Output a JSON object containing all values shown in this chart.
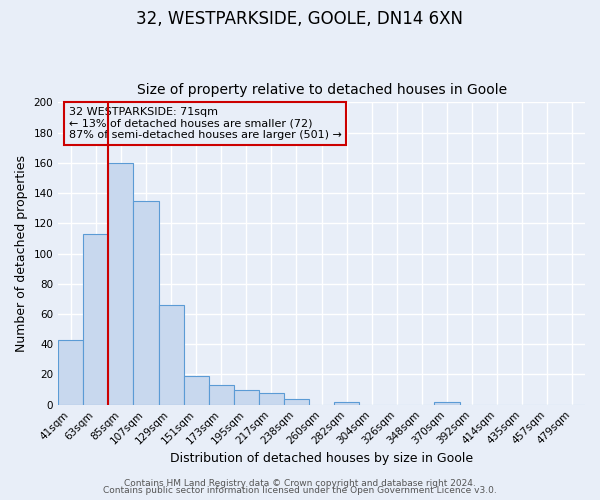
{
  "title": "32, WESTPARKSIDE, GOOLE, DN14 6XN",
  "subtitle": "Size of property relative to detached houses in Goole",
  "xlabel": "Distribution of detached houses by size in Goole",
  "ylabel": "Number of detached properties",
  "bar_labels": [
    "41sqm",
    "63sqm",
    "85sqm",
    "107sqm",
    "129sqm",
    "151sqm",
    "173sqm",
    "195sqm",
    "217sqm",
    "238sqm",
    "260sqm",
    "282sqm",
    "304sqm",
    "326sqm",
    "348sqm",
    "370sqm",
    "392sqm",
    "414sqm",
    "435sqm",
    "457sqm",
    "479sqm"
  ],
  "bar_values": [
    43,
    113,
    160,
    135,
    66,
    19,
    13,
    10,
    8,
    4,
    0,
    2,
    0,
    0,
    0,
    2,
    0,
    0,
    0,
    0,
    0
  ],
  "bar_color": "#c8d8ee",
  "bar_edge_color": "#5b9bd5",
  "red_line_index": 1.5,
  "ylim": [
    0,
    200
  ],
  "yticks": [
    0,
    20,
    40,
    60,
    80,
    100,
    120,
    140,
    160,
    180,
    200
  ],
  "annotation_title": "32 WESTPARKSIDE: 71sqm",
  "annotation_line1": "← 13% of detached houses are smaller (72)",
  "annotation_line2": "87% of semi-detached houses are larger (501) →",
  "footer1": "Contains HM Land Registry data © Crown copyright and database right 2024.",
  "footer2": "Contains public sector information licensed under the Open Government Licence v3.0.",
  "background_color": "#e8eef8",
  "grid_color": "#ffffff",
  "title_fontsize": 12,
  "subtitle_fontsize": 10,
  "axis_label_fontsize": 9,
  "tick_fontsize": 7.5,
  "annotation_fontsize": 8,
  "footer_fontsize": 6.5
}
